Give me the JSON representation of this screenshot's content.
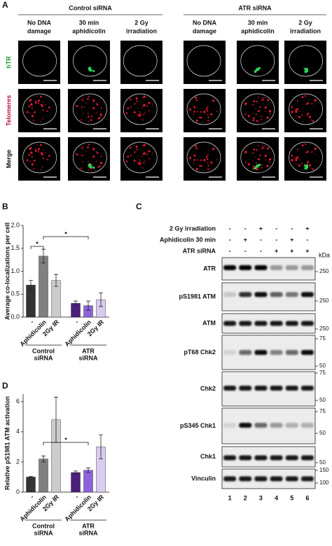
{
  "panel_a": {
    "label": "A",
    "groups": [
      {
        "name": "Control siRNA",
        "conditions": [
          [
            "No DNA",
            "damage"
          ],
          [
            "30 min",
            "aphidicolin"
          ],
          [
            "2 Gy",
            "irradiation"
          ]
        ]
      },
      {
        "name": "ATR siRNA",
        "conditions": [
          [
            "No DNA",
            "damage"
          ],
          [
            "30 min",
            "aphidicolin"
          ],
          [
            "2 Gy",
            "irradiation"
          ]
        ]
      }
    ],
    "rows": [
      "hTR",
      "Telomeres",
      "Merge"
    ]
  },
  "chart_data": [
    {
      "label": "B",
      "type": "bar",
      "ylabel": "Average co-localizations per cell",
      "categories": [
        "-",
        "Aphidicolin",
        "2Gy IR",
        "-",
        "Aphidicolin",
        "2Gy IR"
      ],
      "groups": [
        [
          "Control",
          "siRNA"
        ],
        [
          "ATR",
          "siRNA"
        ]
      ],
      "values": [
        0.7,
        1.33,
        0.8,
        0.3,
        0.25,
        0.38
      ],
      "errors": [
        0.1,
        0.15,
        0.13,
        0.05,
        0.1,
        0.15
      ],
      "colors": [
        "#333333",
        "#808080",
        "#cccccc",
        "#4b1f7a",
        "#8c63d9",
        "#d9ccf0"
      ],
      "ylim": [
        0,
        2
      ],
      "yticks": [
        {
          "value": 0,
          "label": "0.0"
        },
        {
          "value": 0.5,
          "label": "0.5"
        },
        {
          "value": 1,
          "label": "1.0"
        },
        {
          "value": 1.5,
          "label": "1.5"
        },
        {
          "value": 2,
          "label": "2.0"
        }
      ],
      "annotations": [
        "*",
        "*"
      ]
    },
    {
      "label": "D",
      "type": "bar",
      "ylabel": "Relative pS1981 ATM activation",
      "categories": [
        "-",
        "Aphidicolin",
        "2Gy IR",
        "-",
        "Aphidicolin",
        "2Gy IR"
      ],
      "groups": [
        [
          "Control",
          "siRNA"
        ],
        [
          "ATR",
          "siRNA"
        ]
      ],
      "values": [
        1.0,
        2.2,
        4.8,
        1.3,
        1.45,
        3.0
      ],
      "errors": [
        0.05,
        0.2,
        1.5,
        0.1,
        0.15,
        0.8
      ],
      "colors": [
        "#333333",
        "#808080",
        "#cccccc",
        "#4b1f7a",
        "#8c63d9",
        "#d9ccf0"
      ],
      "ylim": [
        0,
        6.5
      ],
      "yticks": [
        0,
        2,
        4,
        6
      ],
      "annotations": [
        "*"
      ]
    }
  ],
  "panel_c": {
    "label": "C",
    "treatments": [
      {
        "name": "2 Gy irradiation",
        "signs": [
          "-",
          "-",
          "+",
          "-",
          "-",
          "+"
        ]
      },
      {
        "name": "Aphidicolin 30 min",
        "signs": [
          "-",
          "+",
          "-",
          "-",
          "+",
          "-"
        ]
      },
      {
        "name": "ATR siRNA",
        "signs": [
          "-",
          "-",
          "-",
          "+",
          "+",
          "+"
        ]
      }
    ],
    "unit": "kDa",
    "blots": [
      {
        "name": "ATR",
        "markers": [
          250
        ]
      },
      {
        "name": "pS1981 ATM",
        "markers": [
          250
        ]
      },
      {
        "name": "ATM",
        "markers": [
          250
        ]
      },
      {
        "name": "pT68 Chk2",
        "markers": [
          75,
          50
        ]
      },
      {
        "name": "Chk2",
        "markers": [
          75,
          50
        ]
      },
      {
        "name": "pS345 Chk1",
        "markers": [
          75,
          50
        ]
      },
      {
        "name": "Chk1",
        "markers": [
          50
        ]
      },
      {
        "name": "Vinculin",
        "markers": [
          150,
          100
        ]
      }
    ],
    "lanes": [
      1,
      2,
      3,
      4,
      5,
      6
    ]
  }
}
